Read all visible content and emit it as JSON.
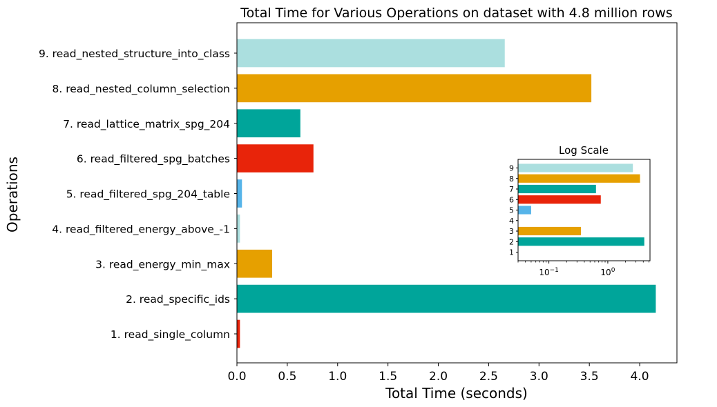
{
  "chart_data": [
    {
      "type": "bar",
      "orientation": "horizontal",
      "title": "Total Time for Various Operations on dataset with 4.8 million rows",
      "xlabel": "Total Time (seconds)",
      "ylabel": "Operations",
      "xlim": [
        0,
        4.37
      ],
      "xticks": [
        "0.0",
        "0.5",
        "1.0",
        "1.5",
        "2.0",
        "2.5",
        "3.0",
        "3.5",
        "4.0"
      ],
      "grid": false,
      "categories": [
        "1. read_single_column",
        "2. read_specific_ids",
        "3. read_energy_min_max",
        "4. read_filtered_energy_above_-1",
        "5. read_filtered_spg_204_table",
        "6. read_filtered_spg_batches",
        "7. read_lattice_matrix_spg_204",
        "8. read_nested_column_selection",
        "9. read_nested_structure_into_class"
      ],
      "values": [
        0.03,
        4.16,
        0.35,
        0.03,
        0.05,
        0.76,
        0.63,
        3.52,
        2.66
      ],
      "colors": [
        "#e8240a",
        "#00a59a",
        "#e6a000",
        "#abdfdf",
        "#56b4e9",
        "#e8240a",
        "#00a59a",
        "#e6a000",
        "#abdfdf"
      ]
    },
    {
      "type": "bar",
      "orientation": "horizontal",
      "title": "Log Scale",
      "xscale": "log",
      "xlim": [
        0.03,
        5.2
      ],
      "xticks": [
        "10^-1",
        "10^0"
      ],
      "categories": [
        "1",
        "2",
        "3",
        "4",
        "5",
        "6",
        "7",
        "8",
        "9"
      ],
      "values": [
        0.03,
        4.16,
        0.35,
        0.03,
        0.05,
        0.76,
        0.63,
        3.52,
        2.66
      ],
      "colors": [
        "#e8240a",
        "#00a59a",
        "#e6a000",
        "#abdfdf",
        "#56b4e9",
        "#e8240a",
        "#00a59a",
        "#e6a000",
        "#abdfdf"
      ]
    }
  ]
}
